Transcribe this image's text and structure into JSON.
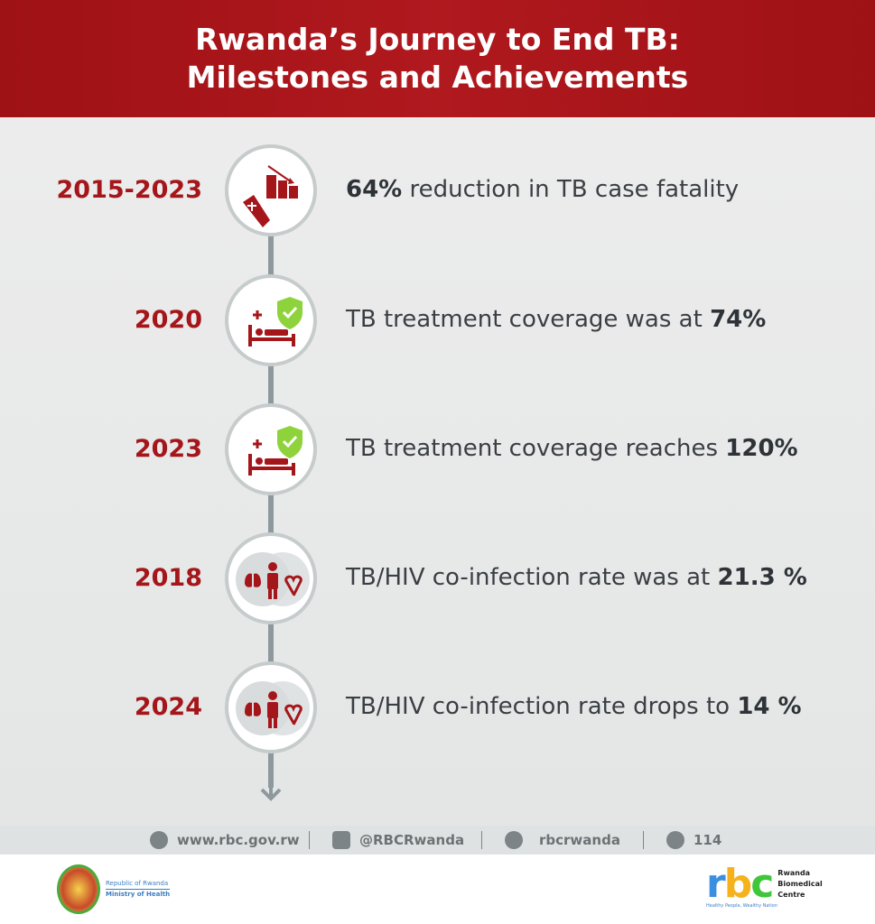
{
  "header": {
    "title_line1": "Rwanda’s Journey to End TB:",
    "title_line2": "Milestones and Achievements"
  },
  "milestones": [
    {
      "year": "2015-2023",
      "pre": "",
      "bold": "64%",
      "post": " reduction in TB case fatality",
      "icon": "coffin-chart-icon"
    },
    {
      "year": "2020",
      "pre": "TB treatment coverage was at ",
      "bold": "74%",
      "post": "",
      "icon": "bed-shield-icon"
    },
    {
      "year": "2023",
      "pre": "TB treatment coverage reaches ",
      "bold": "120%",
      "post": "",
      "icon": "bed-shield-icon"
    },
    {
      "year": "2018",
      "pre": "TB/HIV co-infection rate was at ",
      "bold": "21.3 %",
      "post": "",
      "icon": "lungs-person-ribbon-icon"
    },
    {
      "year": "2024",
      "pre": "TB/HIV co-infection rate drops to ",
      "bold": "14 %",
      "post": "",
      "icon": "lungs-person-ribbon-icon"
    }
  ],
  "footer": {
    "website": "www.rbc.gov.rw",
    "twitter": "@RBCRwanda",
    "instagram": "rbcrwanda",
    "hotline": "114",
    "sep": "|"
  },
  "logos": {
    "moh_line1": "Republic of Rwanda",
    "moh_line2": "Ministry of Health",
    "rbc": "rbc",
    "rbc_name1": "Rwanda",
    "rbc_name2": "Biomedical",
    "rbc_name3": "Centre",
    "rbc_tagline": "Healthy People, Wealthy Nation"
  },
  "colors": {
    "brand_red": "#a5161b",
    "shield_green": "#8ed33b",
    "text": "#3a3f44"
  }
}
